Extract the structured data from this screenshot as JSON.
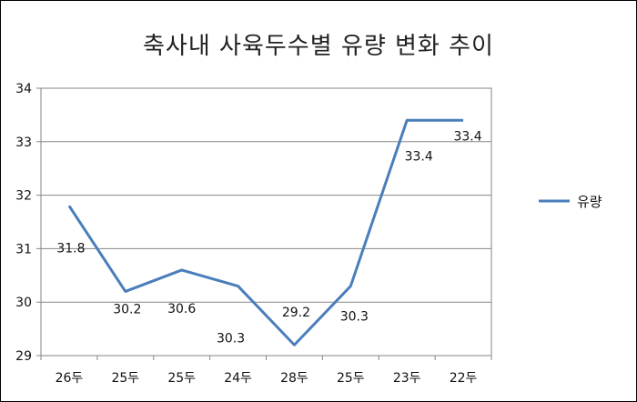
{
  "chart_data": {
    "type": "line",
    "title": "축사내 사육두수별 유량 변화 추이",
    "categories": [
      "26두",
      "25두",
      "25두",
      "24두",
      "28두",
      "25두",
      "23두",
      "22두"
    ],
    "series": [
      {
        "name": "유량",
        "values": [
          31.8,
          30.2,
          30.6,
          30.3,
          29.2,
          30.3,
          33.4,
          33.4
        ],
        "color": "#4a7ebb"
      }
    ],
    "ylim": [
      29,
      34
    ],
    "yticks": [
      29,
      30,
      31,
      32,
      33,
      34
    ],
    "grid": true,
    "legend_position": "right"
  }
}
